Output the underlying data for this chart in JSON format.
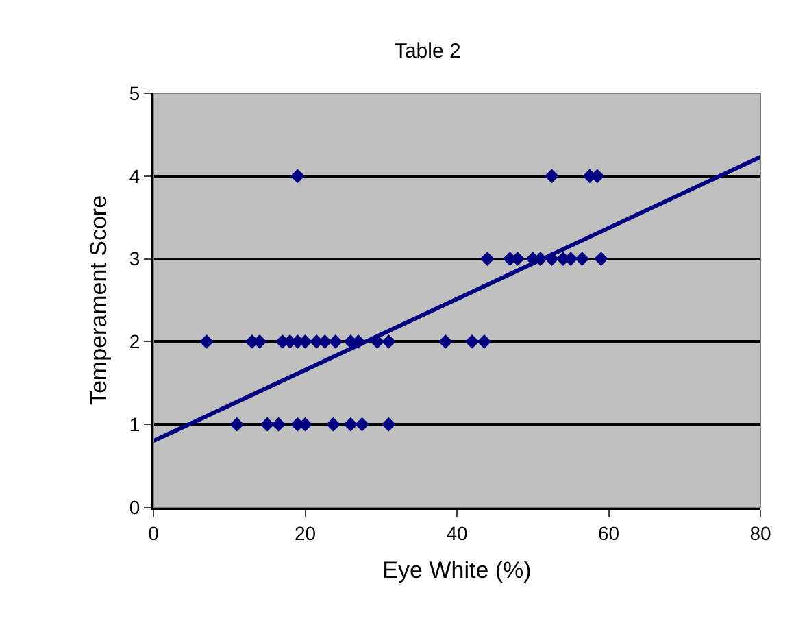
{
  "chart_data": {
    "type": "scatter",
    "title": "Table 2",
    "xlabel": "Eye White (%)",
    "ylabel": "Temperament Score",
    "xlim": [
      0,
      80
    ],
    "ylim": [
      0,
      5
    ],
    "xticks": [
      0,
      20,
      40,
      60,
      80
    ],
    "yticks": [
      0,
      1,
      2,
      3,
      4,
      5
    ],
    "grid": "y",
    "series": [
      {
        "color": "#000080",
        "marker": "diamond",
        "x": [
          7,
          13,
          14,
          17,
          18,
          19,
          20,
          21.5,
          22.6,
          24,
          26,
          27,
          29.5,
          31,
          38.5,
          42,
          43.6,
          11,
          15,
          16.5,
          19,
          20,
          23.7,
          26,
          27.5,
          31,
          44,
          47,
          48,
          50,
          51,
          52.5,
          54,
          55,
          56.5,
          59,
          19,
          52.5,
          57.5,
          58.5
        ],
        "values": [
          2,
          2,
          2,
          2,
          2,
          2,
          2,
          2,
          2,
          2,
          2,
          2,
          2,
          2,
          2,
          2,
          2,
          1,
          1,
          1,
          1,
          1,
          1,
          1,
          1,
          1,
          3,
          3,
          3,
          3,
          3,
          3,
          3,
          3,
          3,
          3,
          4,
          4,
          4,
          4
        ]
      },
      {
        "type": "line",
        "color": "#000080",
        "marker": "none",
        "x": [
          0,
          80
        ],
        "values": [
          0.8,
          4.23
        ]
      }
    ]
  }
}
